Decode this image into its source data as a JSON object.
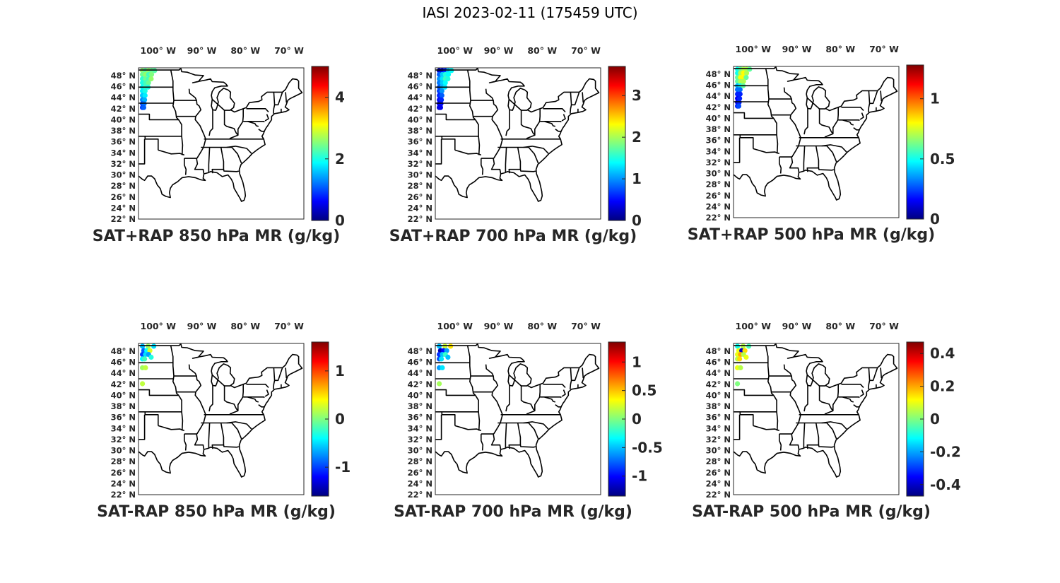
{
  "figure": {
    "title": "IASI 2023-02-11 (175459 UTC)"
  },
  "axes": {
    "lon_ticks": [
      "100° W",
      "90° W",
      "80° W",
      "70° W"
    ],
    "lat_ticks": [
      "48° N",
      "46° N",
      "44° N",
      "42° N",
      "40° N",
      "38° N",
      "36° N",
      "34° N",
      "32° N",
      "30° N",
      "28° N",
      "26° N",
      "24° N",
      "22° N"
    ]
  },
  "colormap": "jet",
  "panels": [
    {
      "title": "SAT+RAP 850 hPa MR (g/kg)",
      "colorbar": {
        "min": 0,
        "max": 5,
        "ticks": [
          0,
          2,
          4
        ],
        "tick_labels": [
          "0",
          "2",
          "4"
        ]
      },
      "points": [
        [
          -103.6,
          48.9,
          2.6
        ],
        [
          -102.9,
          48.9,
          2.3
        ],
        [
          -102.2,
          48.9,
          2.6
        ],
        [
          -101.5,
          48.9,
          2.4
        ],
        [
          -100.8,
          48.9,
          2.3
        ],
        [
          -103.6,
          48.2,
          2.4
        ],
        [
          -102.9,
          48.2,
          2.6
        ],
        [
          -102.2,
          48.2,
          2.2
        ],
        [
          -101.5,
          48.2,
          2.5
        ],
        [
          -103.6,
          47.4,
          2.1
        ],
        [
          -102.9,
          47.4,
          2.4
        ],
        [
          -102.2,
          47.4,
          2.2
        ],
        [
          -101.6,
          47.4,
          2.6
        ],
        [
          -103.6,
          46.7,
          2.0
        ],
        [
          -102.9,
          46.7,
          2.2
        ],
        [
          -102.2,
          46.7,
          2.4
        ],
        [
          -103.6,
          45.9,
          1.9
        ],
        [
          -102.9,
          45.9,
          2.2
        ],
        [
          -102.3,
          45.9,
          2.0
        ],
        [
          -103.6,
          45.2,
          1.8
        ],
        [
          -103.0,
          45.2,
          2.0
        ],
        [
          -103.6,
          44.4,
          1.6
        ],
        [
          -103.0,
          44.4,
          1.8
        ],
        [
          -103.6,
          43.6,
          1.3
        ],
        [
          -103.1,
          43.6,
          1.5
        ],
        [
          -103.6,
          42.9,
          1.0
        ],
        [
          -103.2,
          42.9,
          1.2
        ],
        [
          -103.6,
          42.2,
          0.9
        ],
        [
          -103.3,
          42.2,
          1.1
        ]
      ]
    },
    {
      "title": "SAT+RAP 700 hPa MR (g/kg)",
      "colorbar": {
        "min": 0,
        "max": 3.7,
        "ticks": [
          0,
          1,
          2,
          3
        ],
        "tick_labels": [
          "0",
          "1",
          "2",
          "3"
        ]
      },
      "points": [
        [
          -103.6,
          48.9,
          0.2
        ],
        [
          -102.9,
          48.9,
          0.3
        ],
        [
          -102.2,
          48.9,
          0.6
        ],
        [
          -101.5,
          48.9,
          1.2
        ],
        [
          -100.8,
          48.9,
          1.4
        ],
        [
          -103.6,
          48.2,
          0.8
        ],
        [
          -102.9,
          48.2,
          1.2
        ],
        [
          -102.2,
          48.2,
          1.5
        ],
        [
          -101.5,
          48.2,
          1.4
        ],
        [
          -103.6,
          47.4,
          1.0
        ],
        [
          -102.9,
          47.4,
          1.3
        ],
        [
          -102.2,
          47.4,
          1.6
        ],
        [
          -101.6,
          47.4,
          1.5
        ],
        [
          -103.6,
          46.7,
          0.9
        ],
        [
          -102.9,
          46.7,
          1.2
        ],
        [
          -102.2,
          46.7,
          1.4
        ],
        [
          -103.6,
          45.9,
          0.8
        ],
        [
          -102.9,
          45.9,
          1.1
        ],
        [
          -102.3,
          45.9,
          1.3
        ],
        [
          -103.6,
          45.2,
          0.7
        ],
        [
          -103.0,
          45.2,
          1.0
        ],
        [
          -103.6,
          44.4,
          0.6
        ],
        [
          -103.0,
          44.4,
          0.8
        ],
        [
          -103.6,
          43.6,
          0.5
        ],
        [
          -103.1,
          43.6,
          0.6
        ],
        [
          -103.6,
          42.9,
          0.4
        ],
        [
          -103.2,
          42.9,
          0.5
        ],
        [
          -103.6,
          42.2,
          0.3
        ],
        [
          -103.3,
          42.2,
          0.4
        ]
      ]
    },
    {
      "title": "SAT+RAP 500 hPa MR (g/kg)",
      "colorbar": {
        "min": 0,
        "max": 1.28,
        "ticks": [
          0,
          0.5,
          1
        ],
        "tick_labels": [
          "0",
          "0.5",
          "1"
        ]
      },
      "points": [
        [
          -103.6,
          48.9,
          0.5
        ],
        [
          -102.9,
          48.9,
          0.6
        ],
        [
          -102.2,
          48.9,
          0.7
        ],
        [
          -101.5,
          48.9,
          0.7
        ],
        [
          -100.8,
          48.9,
          0.6
        ],
        [
          -103.6,
          48.2,
          0.5
        ],
        [
          -102.9,
          48.2,
          0.7
        ],
        [
          -102.2,
          48.2,
          0.8
        ],
        [
          -101.5,
          48.2,
          0.7
        ],
        [
          -103.6,
          47.4,
          0.6
        ],
        [
          -102.9,
          47.4,
          0.8
        ],
        [
          -102.2,
          47.4,
          0.8
        ],
        [
          -101.6,
          47.4,
          0.6
        ],
        [
          -103.6,
          46.7,
          0.6
        ],
        [
          -102.9,
          46.7,
          0.7
        ],
        [
          -102.2,
          46.7,
          0.7
        ],
        [
          -103.6,
          45.9,
          0.4
        ],
        [
          -102.9,
          45.9,
          0.5
        ],
        [
          -102.3,
          45.9,
          0.6
        ],
        [
          -103.6,
          45.2,
          0.3
        ],
        [
          -103.0,
          45.2,
          0.3
        ],
        [
          -103.6,
          44.4,
          0.2
        ],
        [
          -103.0,
          44.4,
          0.2
        ],
        [
          -103.6,
          43.6,
          0.15
        ],
        [
          -103.1,
          43.6,
          0.2
        ],
        [
          -103.6,
          42.9,
          0.15
        ],
        [
          -103.2,
          42.9,
          0.2
        ],
        [
          -103.6,
          42.2,
          0.2
        ],
        [
          -103.3,
          42.2,
          0.25
        ]
      ]
    },
    {
      "title": "SAT-RAP 850 hPa MR (g/kg)",
      "colorbar": {
        "min": -1.6,
        "max": 1.6,
        "ticks": [
          -1,
          0,
          1
        ],
        "tick_labels": [
          "-1",
          "0",
          "1"
        ]
      },
      "points": [
        [
          -103.6,
          48.9,
          -0.6
        ],
        [
          -102.3,
          48.9,
          0.1
        ],
        [
          -101.0,
          48.9,
          -0.5
        ],
        [
          -103.3,
          48.1,
          -0.9
        ],
        [
          -102.6,
          48.1,
          -0.4
        ],
        [
          -101.9,
          48.1,
          0.3
        ],
        [
          -103.6,
          47.4,
          -1.0
        ],
        [
          -102.9,
          47.4,
          -0.5
        ],
        [
          -102.2,
          47.4,
          -0.7
        ],
        [
          -101.6,
          46.9,
          -0.3
        ],
        [
          -103.6,
          46.6,
          -0.4
        ],
        [
          -103.1,
          46.6,
          -0.2
        ],
        [
          -103.6,
          45.0,
          0.1
        ],
        [
          -102.9,
          45.0,
          0.2
        ],
        [
          -103.6,
          42.1,
          0.2
        ]
      ]
    },
    {
      "title": "SAT-RAP 700 hPa MR (g/kg)",
      "colorbar": {
        "min": -1.35,
        "max": 1.35,
        "ticks": [
          -1,
          -0.5,
          0,
          0.5,
          1
        ],
        "tick_labels": [
          "-1",
          "-0.5",
          "0",
          "0.5",
          "1"
        ]
      },
      "points": [
        [
          -103.6,
          48.9,
          -0.5
        ],
        [
          -102.3,
          48.9,
          0.2
        ],
        [
          -101.0,
          48.9,
          0.4
        ],
        [
          -103.3,
          48.1,
          -1.2
        ],
        [
          -102.6,
          48.1,
          -1.0
        ],
        [
          -101.9,
          48.1,
          -0.6
        ],
        [
          -103.6,
          47.4,
          -0.9
        ],
        [
          -102.9,
          47.4,
          -0.5
        ],
        [
          -102.2,
          47.4,
          -0.2
        ],
        [
          -101.6,
          46.9,
          -0.5
        ],
        [
          -103.6,
          46.6,
          -0.8
        ],
        [
          -103.1,
          46.6,
          -0.4
        ],
        [
          -103.6,
          45.0,
          -0.6
        ],
        [
          -102.9,
          45.0,
          -0.4
        ],
        [
          -103.6,
          42.1,
          0.1
        ]
      ]
    },
    {
      "title": "SAT-RAP 500 hPa MR (g/kg)",
      "colorbar": {
        "min": -0.47,
        "max": 0.47,
        "ticks": [
          -0.4,
          -0.2,
          0,
          0.2,
          0.4
        ],
        "tick_labels": [
          "-0.4",
          "-0.2",
          "0",
          "0.2",
          "0.4"
        ]
      },
      "points": [
        [
          -103.6,
          48.9,
          -0.1
        ],
        [
          -102.3,
          48.9,
          0.05
        ],
        [
          -101.0,
          48.9,
          -0.05
        ],
        [
          -103.3,
          48.1,
          0.1
        ],
        [
          -102.6,
          48.1,
          -0.4
        ],
        [
          -101.9,
          48.1,
          0.15
        ],
        [
          -103.6,
          47.4,
          0.1
        ],
        [
          -102.9,
          47.4,
          0.2
        ],
        [
          -102.2,
          47.4,
          0.05
        ],
        [
          -101.6,
          46.9,
          0.1
        ],
        [
          -103.6,
          46.6,
          0.05
        ],
        [
          -103.1,
          46.6,
          0.15
        ],
        [
          -103.6,
          45.0,
          0.1
        ],
        [
          -102.9,
          45.0,
          0.05
        ],
        [
          -103.6,
          42.1,
          0.0
        ]
      ]
    }
  ]
}
